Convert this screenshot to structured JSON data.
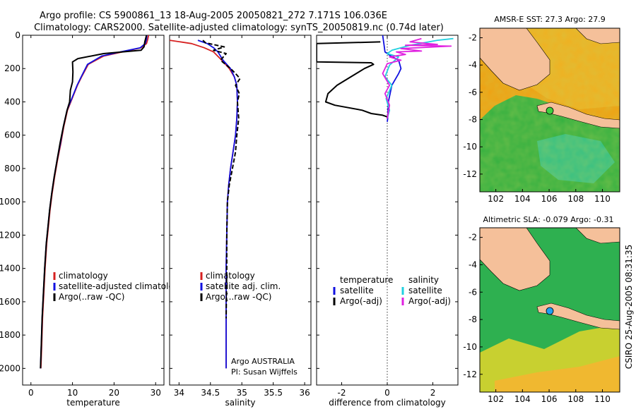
{
  "header": {
    "title_line1": "Argo profile: CS 5900861_13 18-Aug-2005 20050821_272 7.171S 106.036E",
    "title_line2": "Climatology: CARS2000. Satellite-adjusted climatology: synTS_20050819.nc (0.74d later)"
  },
  "side_label": "CSIRO 25-Aug-2005 08:31:35",
  "chart_data": [
    {
      "id": "temperature",
      "type": "line",
      "xlabel": "temperature",
      "ylabel": "",
      "xlim": [
        -2,
        32
      ],
      "ylim": [
        2100,
        0
      ],
      "xticks": [
        0,
        10,
        20,
        30
      ],
      "yticks": [
        0,
        200,
        400,
        600,
        800,
        1000,
        1200,
        1400,
        1600,
        1800,
        2000
      ],
      "legend": [
        "climatology",
        "satellite-adjusted climatology",
        "Argo(..raw -QC)"
      ],
      "legend_colors": [
        "#d62020",
        "#1010e0",
        "#000000"
      ],
      "legend_position": "lower-right",
      "series": [
        {
          "name": "climatology",
          "color": "#d62020",
          "x": [
            28.3,
            28.1,
            27.8,
            26.5,
            22,
            17.5,
            13.8,
            12.2,
            11.2,
            10.4,
            9.6,
            8.8,
            7.9,
            7.2,
            6.4,
            5.7,
            5.1,
            4.6,
            4.2,
            3.8,
            3.4,
            3.1,
            2.8,
            2.6,
            2.4
          ],
          "y": [
            0,
            25,
            50,
            75,
            100,
            125,
            175,
            250,
            300,
            350,
            400,
            450,
            550,
            650,
            750,
            850,
            950,
            1050,
            1150,
            1250,
            1400,
            1550,
            1700,
            1850,
            2000
          ]
        },
        {
          "name": "satellite-adjusted climatology",
          "color": "#1010e0",
          "x": [
            27.9,
            27.8,
            27.5,
            26.3,
            21.5,
            17,
            13.6,
            12.1,
            11.1,
            10.3,
            9.5,
            8.7,
            7.8,
            7.1,
            6.3,
            5.6,
            5.0,
            4.5,
            4.1,
            3.7,
            3.3,
            3.0,
            2.7,
            2.5,
            2.3
          ],
          "y": [
            0,
            25,
            50,
            75,
            100,
            125,
            175,
            250,
            300,
            350,
            400,
            450,
            550,
            650,
            750,
            850,
            950,
            1050,
            1150,
            1250,
            1400,
            1550,
            1700,
            1850,
            2000
          ]
        },
        {
          "name": "Argo(..raw -QC)",
          "color": "#000000",
          "x": [
            27.8,
            27.4,
            27.2,
            26.5,
            17.5,
            11.3,
            10.0,
            10.1,
            10.0,
            9.5,
            9.3,
            8.7,
            7.8,
            7.0,
            6.3,
            5.6,
            5.0,
            4.5,
            4.1,
            3.7,
            3.3,
            3.0,
            2.7,
            2.5,
            2.3
          ],
          "y": [
            0,
            40,
            70,
            90,
            110,
            140,
            160,
            220,
            280,
            330,
            400,
            450,
            550,
            650,
            750,
            850,
            950,
            1050,
            1150,
            1250,
            1400,
            1550,
            1700,
            1850,
            2000
          ]
        }
      ]
    },
    {
      "id": "salinity",
      "type": "line",
      "xlabel": "salinity",
      "ylabel": "",
      "xlim": [
        33.85,
        36.1
      ],
      "ylim": [
        2100,
        0
      ],
      "xticks": [
        34,
        34.5,
        35,
        35.5,
        36
      ],
      "legend": [
        "climatology",
        "satellite adj. clim.",
        "Argo(..raw -QC)"
      ],
      "legend_colors": [
        "#d62020",
        "#1010e0",
        "#000000"
      ],
      "legend_position": "lower-right",
      "annotation": [
        "Argo AUSTRALIA",
        "PI: Susan Wijffels"
      ],
      "series": [
        {
          "name": "climatology",
          "color": "#d62020",
          "x": [
            33.85,
            34.2,
            34.4,
            34.55,
            34.68,
            34.8,
            34.88,
            34.92,
            34.93,
            34.92,
            34.9,
            34.86,
            34.82,
            34.79,
            34.77,
            34.76,
            34.75,
            34.75,
            34.75
          ],
          "y": [
            30,
            50,
            75,
            100,
            150,
            200,
            250,
            300,
            400,
            500,
            600,
            700,
            800,
            900,
            1000,
            1200,
            1400,
            1700,
            2000
          ]
        },
        {
          "name": "satellite adj. clim.",
          "color": "#1010e0",
          "x": [
            34.3,
            34.45,
            34.55,
            34.62,
            34.7,
            34.82,
            34.88,
            34.92,
            34.93,
            34.92,
            34.9,
            34.86,
            34.82,
            34.79,
            34.77,
            34.76,
            34.75,
            34.75,
            34.75
          ],
          "y": [
            30,
            50,
            75,
            100,
            150,
            200,
            250,
            300,
            400,
            500,
            600,
            700,
            800,
            900,
            1000,
            1200,
            1400,
            1700,
            2000
          ]
        },
        {
          "name": "Argo(..raw -QC)",
          "color": "#000000",
          "x": [
            34.38,
            34.42,
            34.6,
            34.72,
            34.55,
            34.75,
            34.66,
            34.82,
            34.9,
            34.97,
            34.9,
            34.96,
            34.93,
            34.95,
            34.92,
            34.9,
            34.85,
            34.8,
            34.77,
            34.76,
            34.76,
            34.75
          ],
          "y": [
            30,
            45,
            60,
            70,
            90,
            110,
            150,
            200,
            230,
            260,
            300,
            350,
            400,
            500,
            600,
            700,
            800,
            900,
            1000,
            1200,
            1400,
            1700
          ]
        }
      ]
    },
    {
      "id": "difference",
      "type": "line",
      "xlabel": "difference from climatology",
      "ylabel": "",
      "xlim": [
        -3.1,
        3.1
      ],
      "ylim": [
        2100,
        0
      ],
      "xticks": [
        -2,
        0,
        2
      ],
      "legend_groups": [
        {
          "title": "temperature",
          "items": [
            "satellite",
            "Argo(-adj)"
          ],
          "colors": [
            "#1010e0",
            "#000000"
          ]
        },
        {
          "title": "salinity",
          "items": [
            "satellite",
            "Argo(-adj)"
          ],
          "colors": [
            "#20d0e0",
            "#e020e0"
          ]
        }
      ],
      "legend_position": "middle",
      "series": [
        {
          "name": "temperature satellite",
          "color": "#1010e0",
          "x": [
            -0.2,
            -0.15,
            -0.1,
            0.1,
            0.5,
            0.6,
            0.5,
            0.2,
            0.05,
            0.02,
            0.0
          ],
          "y": [
            0,
            50,
            100,
            120,
            150,
            200,
            230,
            300,
            400,
            500,
            520
          ]
        },
        {
          "name": "temperature Argo(-adj)",
          "color": "#000000",
          "x": [
            -0.3,
            -3.1,
            -3.1,
            -0.7,
            -0.6,
            -1.0,
            -1.6,
            -2.2,
            -2.6,
            -2.7,
            -2.3,
            -1.1,
            -0.7,
            -0.2,
            0.0,
            0.0
          ],
          "y": [
            40,
            50,
            160,
            165,
            175,
            200,
            250,
            300,
            350,
            400,
            420,
            450,
            470,
            480,
            490,
            500
          ]
        },
        {
          "name": "salinity satellite",
          "color": "#20d0e0",
          "x": [
            2.9,
            2.2,
            1.0,
            0.2,
            0.0,
            0.5,
            0.1,
            -0.1,
            0.2,
            -0.05,
            0.1,
            0.0
          ],
          "y": [
            20,
            30,
            60,
            90,
            110,
            130,
            180,
            250,
            300,
            380,
            450,
            500
          ]
        },
        {
          "name": "salinity Argo(-adj)",
          "color": "#e020e0",
          "x": [
            1.5,
            1.0,
            2.2,
            0.8,
            2.8,
            0.6,
            1.5,
            0.4,
            0.8,
            0.1,
            0.6,
            0.0,
            -0.2,
            0.1,
            -0.1,
            0.1,
            0.0
          ],
          "y": [
            20,
            40,
            55,
            60,
            65,
            80,
            95,
            100,
            115,
            130,
            150,
            170,
            230,
            300,
            350,
            420,
            500
          ]
        }
      ]
    },
    {
      "id": "sst_map",
      "type": "heatmap",
      "title": "AMSR-E SST: 27.3 Argo: 27.9",
      "xlim": [
        100.8,
        111.3
      ],
      "ylim": [
        -13.3,
        -1.3
      ],
      "xticks": [
        102,
        104,
        106,
        108,
        110
      ],
      "yticks": [
        -2,
        -4,
        -6,
        -8,
        -10,
        -12
      ],
      "marker": {
        "lon": 106.036,
        "lat": -7.171,
        "color": "#40d040"
      }
    },
    {
      "id": "sla_map",
      "type": "heatmap",
      "title": "Altimetric SLA: -0.079 Argo: -0.31",
      "xlim": [
        100.8,
        111.3
      ],
      "ylim": [
        -13.3,
        -1.3
      ],
      "xticks": [
        102,
        104,
        106,
        108,
        110
      ],
      "yticks": [
        -2,
        -4,
        -6,
        -8,
        -10,
        -12
      ],
      "marker": {
        "lon": 106.036,
        "lat": -7.171,
        "color": "#20a0f0"
      }
    }
  ]
}
